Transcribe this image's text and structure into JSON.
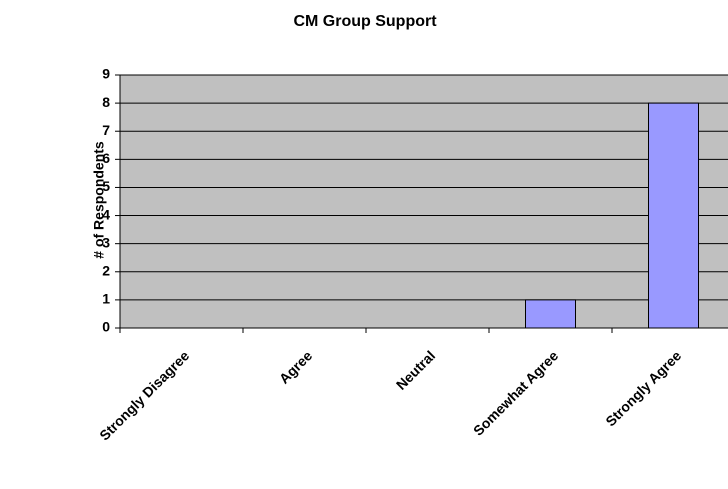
{
  "chart_data": {
    "type": "bar",
    "title": "CM Group Support",
    "y_label": "# of Respondents",
    "categories": [
      "Strongly Disagree",
      "Agree",
      "Neutral",
      "Somewhat Agree",
      "Strongly Agree"
    ],
    "values": [
      0,
      0,
      0,
      1,
      8
    ],
    "color": "#9999ff",
    "ylim": [
      0,
      9
    ],
    "yticks": [
      0,
      1,
      2,
      3,
      4,
      5,
      6,
      7,
      8,
      9
    ],
    "grid": true
  }
}
